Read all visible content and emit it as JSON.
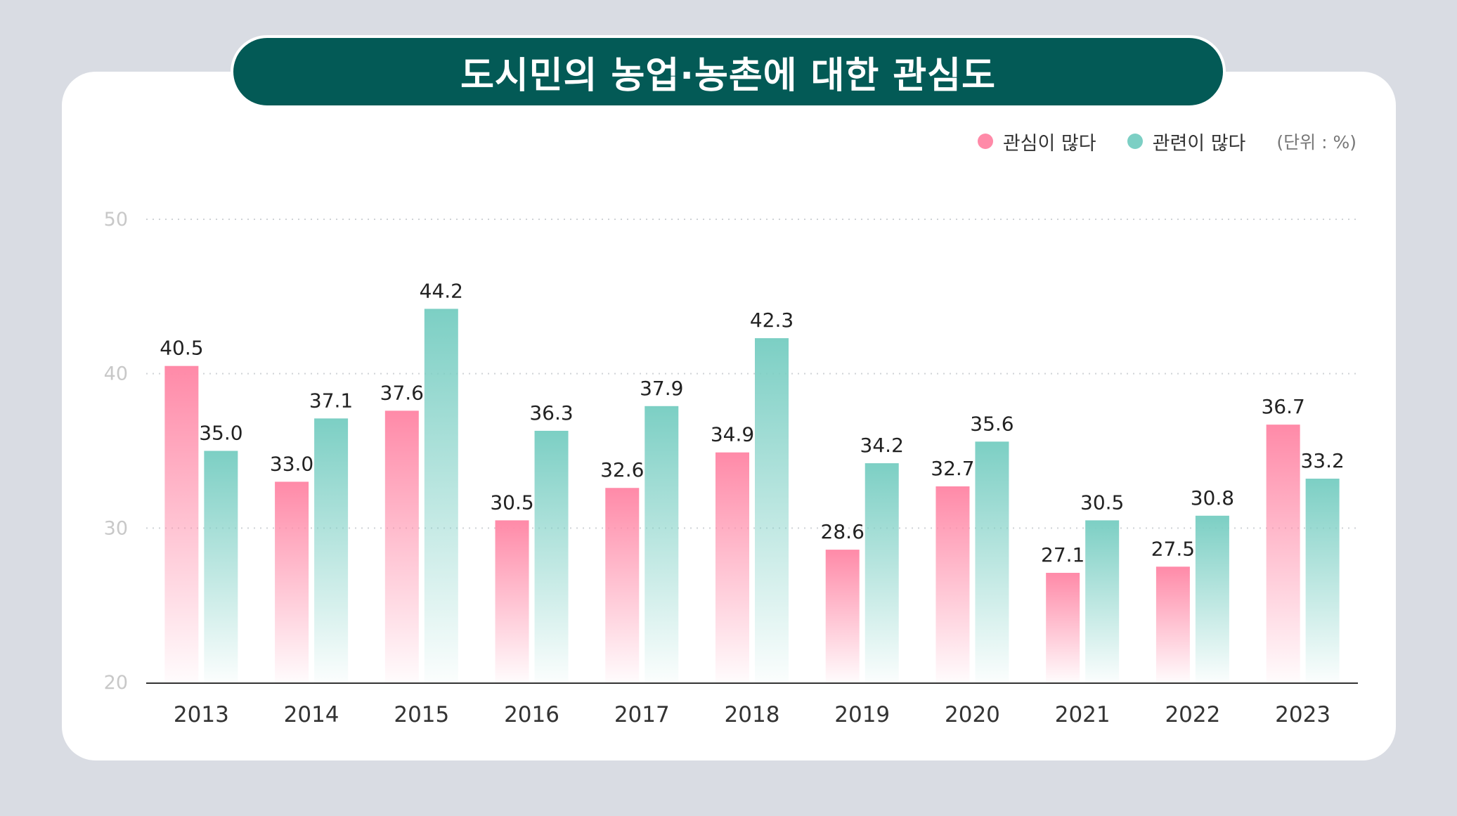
{
  "title": "도시민의 농업·농촌에 대한 관심도",
  "legend_unit": "(단위 : %)",
  "colors": {
    "background": "#d9dce3",
    "title_bg": "#035a56",
    "series_interest": "#ff8aa8",
    "series_related": "#7ccfc4",
    "axis_label": "#c8c8c8",
    "data_label": "#222222"
  },
  "chart_data": {
    "type": "bar",
    "title": "도시민의 농업·농촌에 대한 관심도",
    "xlabel": "",
    "ylabel": "",
    "unit": "(단위 : %)",
    "categories": [
      "2013",
      "2014",
      "2015",
      "2016",
      "2017",
      "2018",
      "2019",
      "2020",
      "2021",
      "2022",
      "2023"
    ],
    "series": [
      {
        "name": "관심이 많다",
        "color": "#ff8aa8",
        "values": [
          40.5,
          33.0,
          37.6,
          30.5,
          32.6,
          34.9,
          28.6,
          32.7,
          27.1,
          27.5,
          36.7
        ]
      },
      {
        "name": "관련이 많다",
        "color": "#7ccfc4",
        "values": [
          35.0,
          37.1,
          44.2,
          36.3,
          37.9,
          42.3,
          34.2,
          35.6,
          30.5,
          30.8,
          33.2
        ]
      }
    ],
    "ylim": [
      20,
      50
    ],
    "yticks": [
      20,
      30,
      40,
      50
    ],
    "grid": true,
    "legend_position": "top-right"
  }
}
